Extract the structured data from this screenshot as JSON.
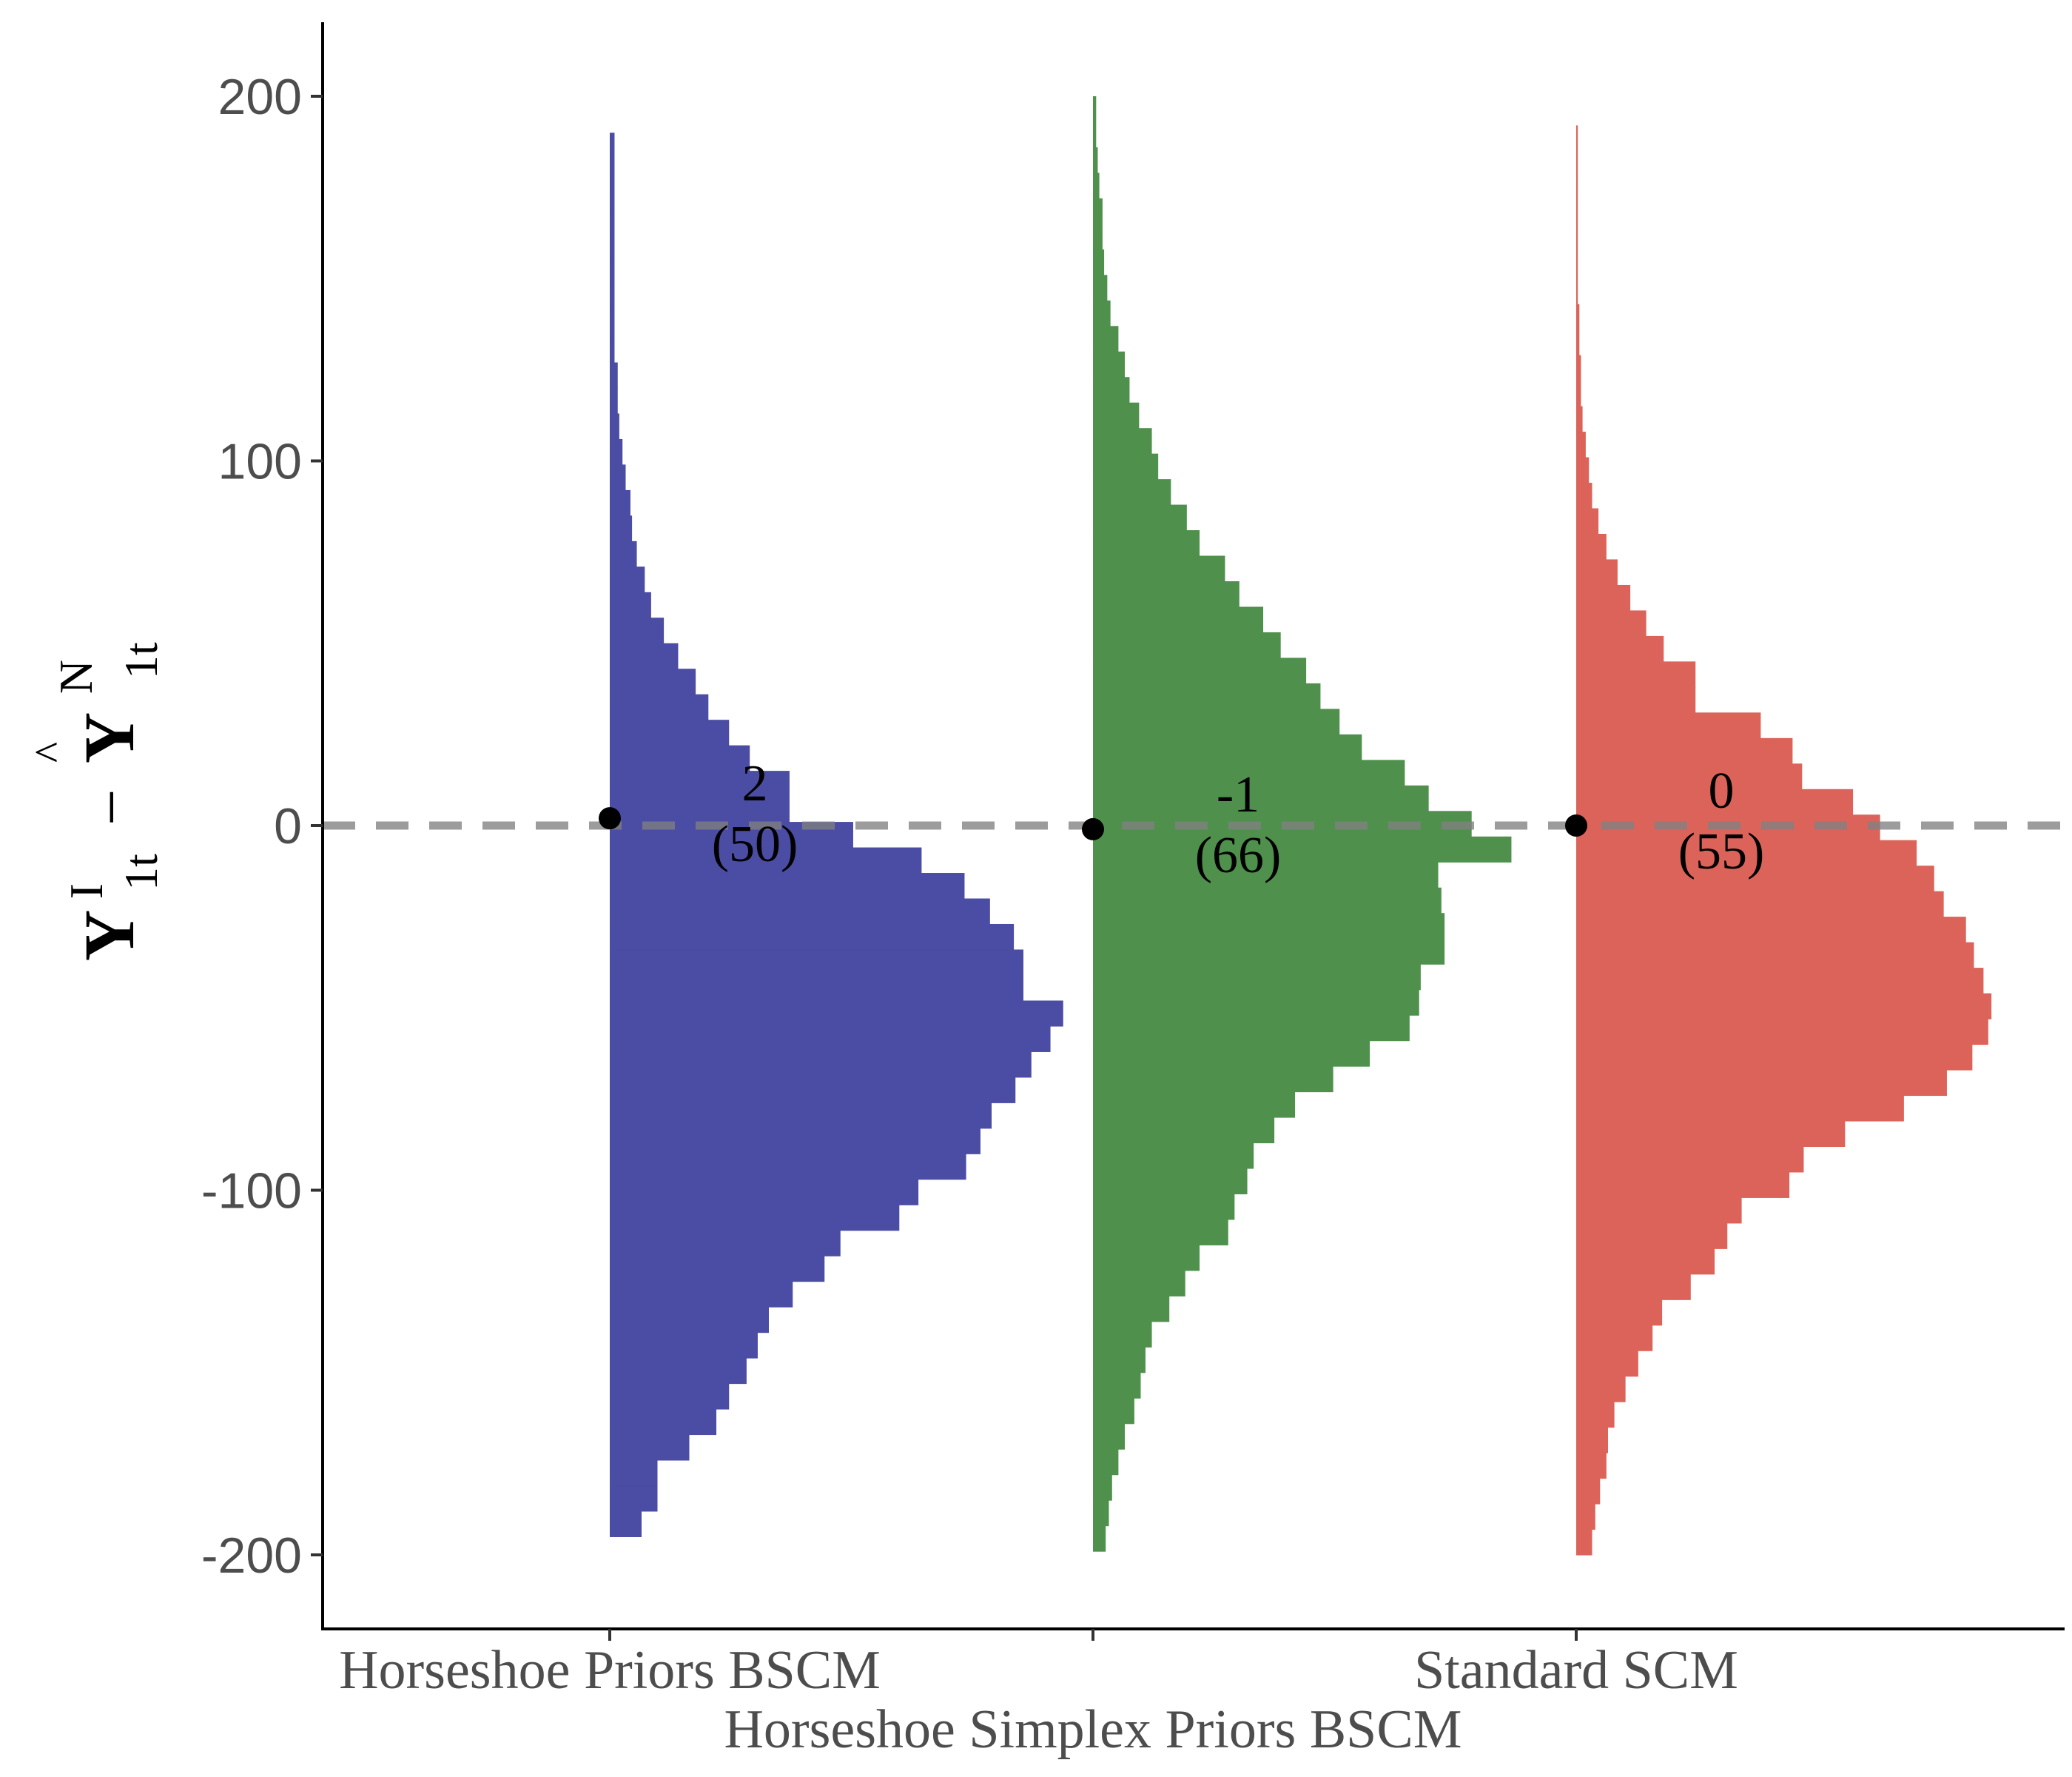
{
  "chart_data": {
    "type": "histogram",
    "ylabel": {
      "main": "Y",
      "super_left": "I",
      "sub_left": "1t",
      "minus": "−",
      "hat": "^",
      "super_right": "N",
      "sub_right": "1t"
    },
    "ylim": [
      -220,
      200
    ],
    "yticks": [
      -200,
      -100,
      0,
      100,
      200
    ],
    "yticklabels": [
      "-200",
      "-100",
      "0",
      "100",
      "200"
    ],
    "reference_line": {
      "y": 0,
      "style": "dashed",
      "color": "#808080"
    },
    "series": [
      {
        "name": "Horseshoe Priors BSCM",
        "label_row": 0,
        "color": "#4b4ca3",
        "point": 2,
        "label_value": "2",
        "label_count": "(50)",
        "bin_width": 7,
        "bins_start": 190,
        "counts": [
          0.3,
          0.3,
          0.3,
          0.3,
          0.3,
          0.3,
          0.3,
          0.3,
          0.3,
          0.5,
          0.5,
          0.6,
          0.8,
          1,
          1.3,
          1.4,
          1.7,
          2.2,
          2.6,
          3.4,
          4.3,
          5.4,
          6.2,
          7.5,
          8.8,
          11.3,
          11.3,
          15.3,
          19.6,
          22.3,
          23.9,
          25.4,
          26,
          26,
          28.5,
          27.7,
          26.5,
          25.5,
          24,
          23.3,
          22.4,
          19.4,
          18.2,
          14.5,
          13.5,
          11.5,
          10,
          9.3,
          8.6,
          7.5,
          6.7,
          5,
          3,
          3,
          2,
          1.8,
          1.2,
          1,
          0.8,
          0.6,
          0.6,
          0.5,
          0.5,
          0.3,
          0.3,
          0.3,
          0.3,
          0.3,
          0.2,
          0.2,
          0.2,
          0.2,
          0.2,
          0.2,
          0.2,
          0.2,
          0.1,
          0.1,
          0.1,
          0.1,
          0.1,
          0.1,
          0.1,
          0.1,
          0.1,
          0.1,
          0.1,
          0.1
        ]
      },
      {
        "name": "Horseshoe Simplex Priors BSCM",
        "label_row": 1,
        "color": "#4f914c",
        "point": -1,
        "label_value": "-1",
        "label_count": "(66)",
        "bin_width": 7,
        "bins_start": 200,
        "counts": [
          0.2,
          0.2,
          0.3,
          0.4,
          0.6,
          0.6,
          0.7,
          0.9,
          1.1,
          1.6,
          2,
          2.3,
          2.9,
          3.7,
          4.1,
          4.9,
          5.9,
          6.7,
          8.3,
          9.2,
          10.7,
          11.8,
          13.4,
          14.3,
          15.5,
          16.9,
          19.6,
          21.1,
          23.8,
          26.3,
          21.7,
          21.9,
          22.1,
          22.1,
          20.6,
          20.5,
          19.9,
          17.4,
          15.1,
          12.7,
          11.4,
          10.1,
          9.7,
          8.9,
          8.5,
          6.7,
          5.8,
          4.8,
          3.7,
          3.3,
          3,
          2.6,
          2,
          1.6,
          1.2,
          1,
          0.8,
          0.8,
          0.7,
          0.6,
          0.5,
          0.5,
          0.5,
          0.4,
          0.4,
          0.4,
          0.4,
          0.4,
          0.3,
          0.3,
          0.3,
          0.3,
          0.3,
          0.3,
          0.3,
          0.3,
          0.3,
          0.3,
          0.3,
          0.3,
          0.3,
          0.3,
          0.3,
          0.3,
          0.3,
          0.3,
          0.3,
          0.3,
          0.3,
          0.3
        ]
      },
      {
        "name": "Standard SCM",
        "label_row": 0,
        "color": "#dc635a",
        "point": 0,
        "label_value": "0",
        "label_count": "(55)",
        "bin_width": 7,
        "bins_start": 192,
        "counts": [
          0.1,
          0.1,
          0.1,
          0.1,
          0.1,
          0.1,
          0.1,
          0.2,
          0.2,
          0.3,
          0.3,
          0.4,
          0.6,
          0.8,
          1,
          1.4,
          1.9,
          2.6,
          3.4,
          4.4,
          5.5,
          7.5,
          7.5,
          11.6,
          13.6,
          14.2,
          17.4,
          19.1,
          21.4,
          22.5,
          23.1,
          24.5,
          25,
          25.6,
          26.1,
          25.9,
          24.9,
          23.3,
          20.6,
          16.9,
          14.3,
          13.4,
          10.4,
          9.5,
          8.7,
          7.2,
          5.4,
          4.8,
          3.9,
          3.1,
          2.4,
          2,
          1.9,
          1.5,
          1.2,
          1,
          0.8,
          0.7,
          0.5,
          0.4,
          0.4,
          0.3,
          0.3,
          0.3,
          0.2,
          0.2,
          0.1,
          0.1,
          0.1,
          0.1,
          0.1,
          0.1,
          0.1,
          0.1,
          0.1,
          0.1,
          0.1,
          0.1,
          0.1,
          0.1,
          0.1,
          0.1,
          0.1,
          0.1,
          0.1,
          0.1
        ]
      }
    ]
  }
}
